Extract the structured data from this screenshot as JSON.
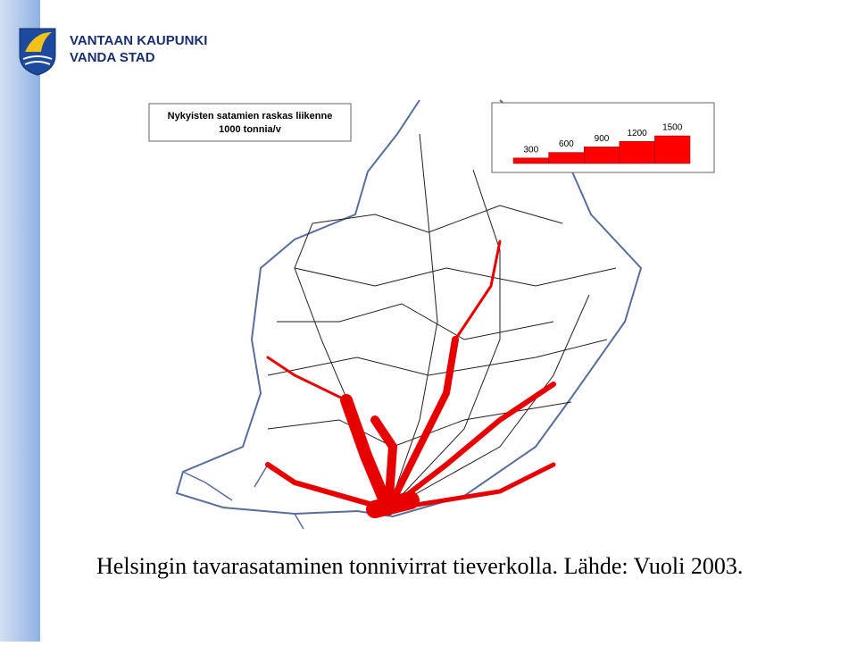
{
  "header": {
    "org_line1": "VANTAAN KAUPUNKI",
    "org_line2": "VANDA STAD"
  },
  "map": {
    "title_line1": "Nykyisten satamien raskas liikenne",
    "title_line2": "1000 tonnia/v",
    "legend": {
      "values": [
        300,
        600,
        900,
        1200,
        1500
      ],
      "color": "#ff0000"
    }
  },
  "caption": "Helsingin tavarasataminen tonnivirrat tieverkolla. Lähde: Vuoli 2003."
}
